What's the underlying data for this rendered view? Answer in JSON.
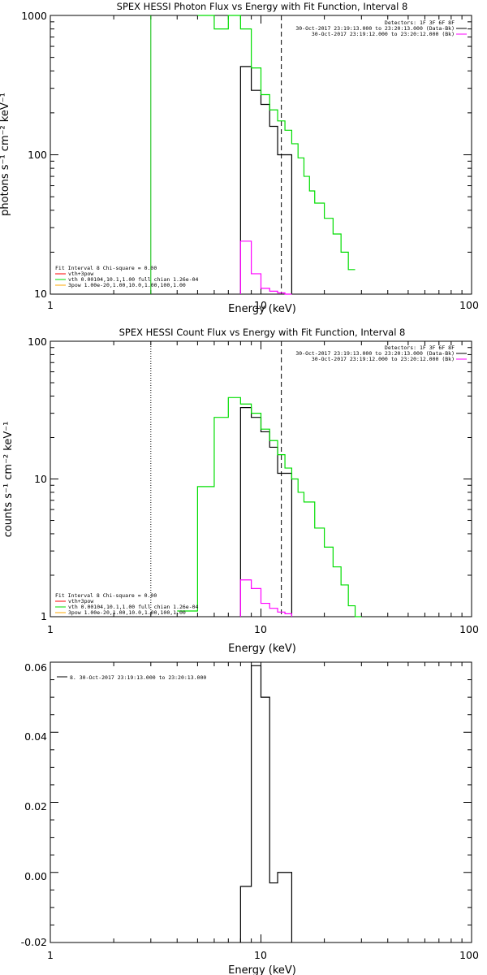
{
  "chart_data": [
    {
      "type": "line",
      "title": "SPEX HESSI Photon Flux vs Energy with Fit Function, Interval 8",
      "xlabel": "Energy (keV)",
      "ylabel": "photons s⁻¹ cm⁻² keV⁻¹",
      "xscale": "log",
      "yscale": "log",
      "xlim": [
        1,
        100
      ],
      "ylim": [
        10,
        1000
      ],
      "xticks": [
        "1",
        "10",
        "100"
      ],
      "yticks": [
        "10",
        "100",
        "1000"
      ],
      "vlines": [
        {
          "x": 3.0,
          "style": "solid",
          "color": "#00bb00"
        },
        {
          "x": 12.5,
          "style": "dashed",
          "color": "#000000"
        }
      ],
      "legend_top": [
        "Detectors: 1F 3F 6F 8F",
        "30-Oct-2017 23:19:13.000 to 23:20:13.000 (Data-Bk)",
        "30-Oct-2017 23:19:12.000 to 23:20:12.000 (Bk)"
      ],
      "legend_top_colors": [
        "",
        "#000000",
        "#ff00ff"
      ],
      "legend_bottom": [
        "Fit Interval 8   Chi-square = 0.00",
        "vth+3pow",
        "vth 0.00104,10.1,1.00   full chian 1.26e-04",
        "3pow 1.00e-20,1.00,10.0,1.00,100,1.00"
      ],
      "legend_bottom_colors": [
        "",
        "#ff0000",
        "#00dd00",
        "#ffaa00"
      ],
      "series": [
        {
          "name": "30-Oct-2017 23:19:13.000 to 23:20:13.000 (Data-Bk)",
          "color": "#000000",
          "step": true,
          "edges": [
            8.0,
            9.0,
            10.0,
            11.0,
            12.0,
            13.0,
            14.0
          ],
          "values": [
            430,
            290,
            230,
            160,
            100,
            100
          ],
          "to_floor": true
        },
        {
          "name": "30-Oct-2017 23:19:12.000 to 23:20:12.000 (Bk)",
          "color": "#ff00ff",
          "step": true,
          "edges": [
            8.0,
            9.0,
            10.0,
            11.0,
            12.0,
            13.0,
            14.0
          ],
          "values": [
            24,
            14,
            11,
            10.5,
            10.2,
            10.0
          ],
          "to_floor": true
        },
        {
          "name": "vth+3pow",
          "color": "#00dd00",
          "step": true,
          "edges": [
            5.0,
            6.0,
            7.0,
            8.0,
            9.0,
            10.0,
            11.0,
            12.0,
            13.0,
            14.0,
            15.0,
            16.0,
            17.0,
            18.0,
            20.0,
            22.0,
            24.0,
            26.0,
            28.0
          ],
          "values": [
            1000,
            800,
            1000,
            800,
            420,
            270,
            210,
            175,
            150,
            120,
            95,
            70,
            55,
            45,
            35,
            27,
            20,
            15
          ],
          "to_floor": false
        }
      ]
    },
    {
      "type": "line",
      "title": "SPEX HESSI Count Flux vs Energy with Fit Function, Interval 8",
      "xlabel": "Energy (keV)",
      "ylabel": "counts s⁻¹ cm⁻² keV⁻¹",
      "xscale": "log",
      "yscale": "log",
      "xlim": [
        1,
        100
      ],
      "ylim": [
        1,
        100
      ],
      "xticks": [
        "1",
        "10",
        "100"
      ],
      "yticks": [
        "1",
        "10",
        "100"
      ],
      "vlines": [
        {
          "x": 3.0,
          "style": "dotted",
          "color": "#000000"
        },
        {
          "x": 12.5,
          "style": "dashed",
          "color": "#000000"
        }
      ],
      "legend_top": [
        "Detectors: 1F 3F 6F 8F",
        "30-Oct-2017 23:19:13.000 to 23:20:13.000 (Data-Bk)",
        "30-Oct-2017 23:19:12.000 to 23:20:12.000 (Bk)"
      ],
      "legend_top_colors": [
        "",
        "#000000",
        "#ff00ff"
      ],
      "legend_bottom": [
        "Fit Interval 8   Chi-square = 0.00",
        "vth+3pow",
        "vth 0.00104,10.1,1.00   full chian 1.26e-04",
        "3pow 1.00e-20,1.00,10.0,1.00,100,1.00"
      ],
      "legend_bottom_colors": [
        "",
        "#ff0000",
        "#00dd00",
        "#ffaa00"
      ],
      "series": [
        {
          "name": "30-Oct-2017 23:19:13.000 to 23:20:13.000 (Data-Bk)",
          "color": "#000000",
          "step": true,
          "edges": [
            8.0,
            9.0,
            10.0,
            11.0,
            12.0,
            13.0,
            14.0
          ],
          "values": [
            33,
            28,
            22,
            17,
            11,
            11
          ],
          "to_floor": true
        },
        {
          "name": "30-Oct-2017 23:19:12.000 to 23:20:12.000 (Bk)",
          "color": "#ff00ff",
          "step": true,
          "edges": [
            8.0,
            9.0,
            10.0,
            11.0,
            12.0,
            13.0,
            14.0
          ],
          "values": [
            1.85,
            1.6,
            1.25,
            1.15,
            1.08,
            1.05
          ],
          "to_floor": true
        },
        {
          "name": "vth+3pow",
          "color": "#00dd00",
          "step": true,
          "edges": [
            4.0,
            5.0,
            6.0,
            7.0,
            8.0,
            9.0,
            10.0,
            11.0,
            12.0,
            13.0,
            14.0,
            15.0,
            16.0,
            18.0,
            20.0,
            22.0,
            24.0,
            26.0,
            28.0,
            30.0
          ],
          "values": [
            1.1,
            8.8,
            28,
            39,
            35,
            30,
            23,
            19,
            15,
            12,
            10,
            8,
            6.8,
            4.4,
            3.2,
            2.3,
            1.7,
            1.2,
            1.0
          ],
          "to_floor": false
        }
      ]
    },
    {
      "type": "line",
      "title": "",
      "xlabel": "Energy (keV)",
      "ylabel": "",
      "xscale": "log",
      "yscale": "linear",
      "xlim": [
        1,
        100
      ],
      "ylim": [
        -0.02,
        0.06
      ],
      "xticks": [
        "1",
        "10",
        "100"
      ],
      "yticks": [
        "-0.02",
        "0.00",
        "0.02",
        "0.04",
        "0.06"
      ],
      "legend_top": [
        "8. 30-Oct-2017 23:19:13.000 to 23:20:13.000"
      ],
      "series": [
        {
          "name": "8. 30-Oct-2017 23:19:13.000 to 23:20:13.000",
          "color": "#000000",
          "step": true,
          "edges": [
            8.0,
            9.0,
            10.0,
            11.0,
            12.0,
            13.0,
            14.0
          ],
          "values": [
            -0.004,
            0.059,
            0.05,
            -0.003,
            0.0,
            0.0
          ],
          "to_floor": true
        }
      ]
    }
  ]
}
